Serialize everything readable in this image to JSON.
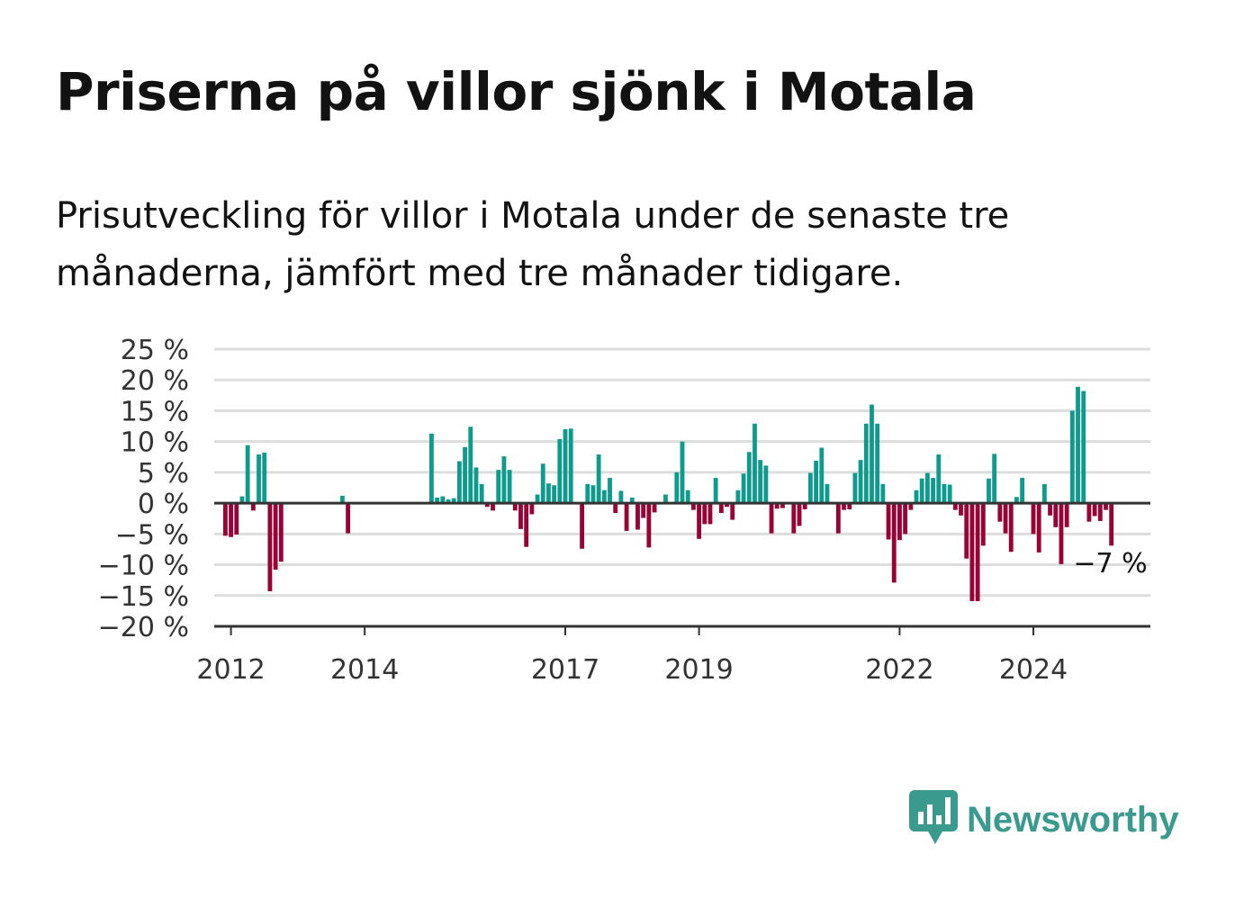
{
  "title": "Priserna på villor sjönk i Motala",
  "subtitle": "Prisutveckling för villor i Motala under de senaste tre månaderna, jämfört med tre månader tidigare.",
  "brand": {
    "name": "Newsworthy",
    "logo_icon": "bar-chart-speech-bubble-icon",
    "color": "#3a9a8e"
  },
  "colors": {
    "positive": "#0f9a8e",
    "negative": "#990036",
    "grid": "#dddddd",
    "baseline": "#333333"
  },
  "chart_data": {
    "type": "bar",
    "title": "Priserna på villor sjönk i Motala",
    "ylim": [
      -20,
      25
    ],
    "y_ticks": [
      {
        "value": 25,
        "label": "25 %"
      },
      {
        "value": 20,
        "label": "20 %"
      },
      {
        "value": 15,
        "label": "15 %"
      },
      {
        "value": 10,
        "label": "10 %"
      },
      {
        "value": 5,
        "label": "5 %"
      },
      {
        "value": 0,
        "label": "0 %"
      },
      {
        "value": -5,
        "label": "−5 %"
      },
      {
        "value": -10,
        "label": "−10 %"
      },
      {
        "value": -15,
        "label": "−15 %"
      },
      {
        "value": -20,
        "label": "−20 %"
      }
    ],
    "x_ticks": [
      {
        "month_index": 0,
        "label": "2012"
      },
      {
        "month_index": 24,
        "label": "2014"
      },
      {
        "month_index": 60,
        "label": "2017"
      },
      {
        "month_index": 84,
        "label": "2019"
      },
      {
        "month_index": 120,
        "label": "2022"
      },
      {
        "month_index": 144,
        "label": "2024"
      }
    ],
    "x_range": [
      "2011-10",
      "2025-10"
    ],
    "bars": [
      {
        "month": "2011-12",
        "value": -5.3
      },
      {
        "month": "2012-01",
        "value": -5.5
      },
      {
        "month": "2012-02",
        "value": -5.1
      },
      {
        "month": "2012-03",
        "value": 1.1
      },
      {
        "month": "2012-04",
        "value": 9.4
      },
      {
        "month": "2012-05",
        "value": -1.2
      },
      {
        "month": "2012-06",
        "value": 7.9
      },
      {
        "month": "2012-07",
        "value": 8.2
      },
      {
        "month": "2012-08",
        "value": -14.3
      },
      {
        "month": "2012-09",
        "value": -10.8
      },
      {
        "month": "2012-10",
        "value": -9.5
      },
      {
        "month": "2013-09",
        "value": 1.2
      },
      {
        "month": "2013-10",
        "value": -4.9
      },
      {
        "month": "2015-01",
        "value": 11.3
      },
      {
        "month": "2015-02",
        "value": 0.9
      },
      {
        "month": "2015-03",
        "value": 1.1
      },
      {
        "month": "2015-04",
        "value": 0.6
      },
      {
        "month": "2015-05",
        "value": 0.8
      },
      {
        "month": "2015-06",
        "value": 6.8
      },
      {
        "month": "2015-07",
        "value": 9.1
      },
      {
        "month": "2015-08",
        "value": 12.4
      },
      {
        "month": "2015-09",
        "value": 5.8
      },
      {
        "month": "2015-10",
        "value": 3.1
      },
      {
        "month": "2015-11",
        "value": -0.6
      },
      {
        "month": "2015-12",
        "value": -1.2
      },
      {
        "month": "2016-01",
        "value": 5.4
      },
      {
        "month": "2016-02",
        "value": 7.6
      },
      {
        "month": "2016-03",
        "value": 5.4
      },
      {
        "month": "2016-04",
        "value": -1.2
      },
      {
        "month": "2016-05",
        "value": -4.2
      },
      {
        "month": "2016-06",
        "value": -7.1
      },
      {
        "month": "2016-07",
        "value": -1.8
      },
      {
        "month": "2016-08",
        "value": 1.4
      },
      {
        "month": "2016-09",
        "value": 6.4
      },
      {
        "month": "2016-10",
        "value": 3.2
      },
      {
        "month": "2016-11",
        "value": 2.9
      },
      {
        "month": "2016-12",
        "value": 10.4
      },
      {
        "month": "2017-01",
        "value": 12.0
      },
      {
        "month": "2017-02",
        "value": 12.1
      },
      {
        "month": "2017-04",
        "value": -7.4
      },
      {
        "month": "2017-05",
        "value": 3.1
      },
      {
        "month": "2017-06",
        "value": 2.9
      },
      {
        "month": "2017-07",
        "value": 7.9
      },
      {
        "month": "2017-08",
        "value": 2.1
      },
      {
        "month": "2017-09",
        "value": 4.1
      },
      {
        "month": "2017-10",
        "value": -1.6
      },
      {
        "month": "2017-11",
        "value": 2.0
      },
      {
        "month": "2017-12",
        "value": -4.5
      },
      {
        "month": "2018-01",
        "value": 0.9
      },
      {
        "month": "2018-02",
        "value": -4.3
      },
      {
        "month": "2018-03",
        "value": -2.4
      },
      {
        "month": "2018-04",
        "value": -7.2
      },
      {
        "month": "2018-05",
        "value": -1.5
      },
      {
        "month": "2018-07",
        "value": 1.4
      },
      {
        "month": "2018-09",
        "value": 5.0
      },
      {
        "month": "2018-10",
        "value": 10.0
      },
      {
        "month": "2018-11",
        "value": 2.1
      },
      {
        "month": "2018-12",
        "value": -1.1
      },
      {
        "month": "2019-01",
        "value": -5.8
      },
      {
        "month": "2019-02",
        "value": -3.4
      },
      {
        "month": "2019-03",
        "value": -3.4
      },
      {
        "month": "2019-04",
        "value": 4.1
      },
      {
        "month": "2019-05",
        "value": -1.6
      },
      {
        "month": "2019-06",
        "value": -0.6
      },
      {
        "month": "2019-07",
        "value": -2.7
      },
      {
        "month": "2019-08",
        "value": 2.1
      },
      {
        "month": "2019-09",
        "value": 4.8
      },
      {
        "month": "2019-10",
        "value": 8.3
      },
      {
        "month": "2019-11",
        "value": 12.9
      },
      {
        "month": "2019-12",
        "value": 7.0
      },
      {
        "month": "2020-01",
        "value": 6.1
      },
      {
        "month": "2020-02",
        "value": -4.9
      },
      {
        "month": "2020-03",
        "value": -0.9
      },
      {
        "month": "2020-04",
        "value": -0.8
      },
      {
        "month": "2020-06",
        "value": -4.9
      },
      {
        "month": "2020-07",
        "value": -3.7
      },
      {
        "month": "2020-08",
        "value": -1.0
      },
      {
        "month": "2020-09",
        "value": 4.9
      },
      {
        "month": "2020-10",
        "value": 6.9
      },
      {
        "month": "2020-11",
        "value": 9.0
      },
      {
        "month": "2020-12",
        "value": 3.1
      },
      {
        "month": "2021-02",
        "value": -4.9
      },
      {
        "month": "2021-03",
        "value": -1.1
      },
      {
        "month": "2021-04",
        "value": -1.0
      },
      {
        "month": "2021-05",
        "value": 4.9
      },
      {
        "month": "2021-06",
        "value": 7.0
      },
      {
        "month": "2021-07",
        "value": 12.9
      },
      {
        "month": "2021-08",
        "value": 16.0
      },
      {
        "month": "2021-09",
        "value": 12.9
      },
      {
        "month": "2021-10",
        "value": 3.1
      },
      {
        "month": "2021-11",
        "value": -5.9
      },
      {
        "month": "2021-12",
        "value": -12.9
      },
      {
        "month": "2022-01",
        "value": -6.0
      },
      {
        "month": "2022-02",
        "value": -5.0
      },
      {
        "month": "2022-03",
        "value": -1.1
      },
      {
        "month": "2022-04",
        "value": 2.1
      },
      {
        "month": "2022-05",
        "value": 4.0
      },
      {
        "month": "2022-06",
        "value": 4.9
      },
      {
        "month": "2022-07",
        "value": 4.1
      },
      {
        "month": "2022-08",
        "value": 7.9
      },
      {
        "month": "2022-09",
        "value": 3.1
      },
      {
        "month": "2022-10",
        "value": 3.0
      },
      {
        "month": "2022-11",
        "value": -1.1
      },
      {
        "month": "2022-12",
        "value": -2.0
      },
      {
        "month": "2023-01",
        "value": -9.0
      },
      {
        "month": "2023-02",
        "value": -15.9
      },
      {
        "month": "2023-03",
        "value": -15.9
      },
      {
        "month": "2023-04",
        "value": -6.9
      },
      {
        "month": "2023-05",
        "value": 4.0
      },
      {
        "month": "2023-06",
        "value": 8.0
      },
      {
        "month": "2023-07",
        "value": -3.0
      },
      {
        "month": "2023-08",
        "value": -4.9
      },
      {
        "month": "2023-09",
        "value": -7.9
      },
      {
        "month": "2023-10",
        "value": 1.0
      },
      {
        "month": "2023-11",
        "value": 4.1
      },
      {
        "month": "2024-01",
        "value": -5.0
      },
      {
        "month": "2024-02",
        "value": -8.0
      },
      {
        "month": "2024-03",
        "value": 3.1
      },
      {
        "month": "2024-04",
        "value": -2.0
      },
      {
        "month": "2024-05",
        "value": -3.9
      },
      {
        "month": "2024-06",
        "value": -9.9
      },
      {
        "month": "2024-07",
        "value": -3.9
      },
      {
        "month": "2024-08",
        "value": 15.0
      },
      {
        "month": "2024-09",
        "value": 18.9
      },
      {
        "month": "2024-10",
        "value": 18.2
      },
      {
        "month": "2024-11",
        "value": -3.0
      },
      {
        "month": "2024-12",
        "value": -2.1
      },
      {
        "month": "2025-01",
        "value": -2.9
      },
      {
        "month": "2025-02",
        "value": -1.1
      },
      {
        "month": "2025-03",
        "value": -6.9
      }
    ],
    "annotation": {
      "label": "−7 %",
      "month": "2025-03",
      "value": -6.9
    },
    "grid": true,
    "legend": "none"
  }
}
